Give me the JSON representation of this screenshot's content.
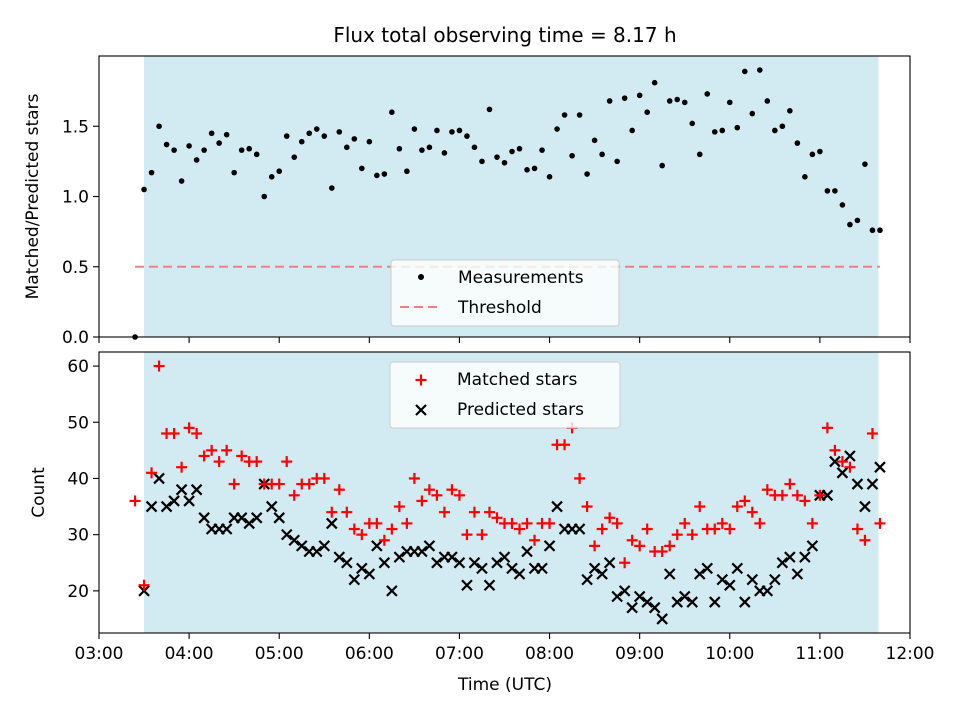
{
  "figure_title": "Flux total observing time = 8.17 h",
  "colors": {
    "shade": "#add8e6",
    "measurement": "#000000",
    "threshold": "#f08080",
    "matched": "#ff0000",
    "predicted": "#000000"
  },
  "chart_data": [
    {
      "type": "scatter",
      "title": "Flux total observing time = 8.17 h",
      "xlabel": "",
      "ylabel": "Matched/Predicted stars",
      "xlim": [
        "03:00",
        "12:00"
      ],
      "ylim": [
        0,
        2.0
      ],
      "yticks": [
        "0.0",
        "0.5",
        "1.0",
        "1.5"
      ],
      "ytick_values": [
        0,
        0.5,
        1.0,
        1.5
      ],
      "shaded_interval": [
        "03:30",
        "11:39"
      ],
      "threshold": 0.5,
      "threshold_range": [
        "03:24",
        "11:40"
      ],
      "legend": {
        "placement": "lower center",
        "entries": [
          "Measurements",
          "Threshold"
        ]
      },
      "series": [
        {
          "name": "Measurements",
          "x": [
            "03:24",
            "03:30",
            "03:35",
            "03:40",
            "03:45",
            "03:50",
            "03:55",
            "04:00",
            "04:05",
            "04:10",
            "04:15",
            "04:20",
            "04:25",
            "04:30",
            "04:35",
            "04:40",
            "04:45",
            "04:50",
            "04:55",
            "05:00",
            "05:05",
            "05:10",
            "05:15",
            "05:20",
            "05:25",
            "05:30",
            "05:35",
            "05:40",
            "05:45",
            "05:50",
            "05:55",
            "06:00",
            "06:05",
            "06:10",
            "06:15",
            "06:20",
            "06:25",
            "06:30",
            "06:35",
            "06:40",
            "06:45",
            "06:50",
            "06:55",
            "07:00",
            "07:05",
            "07:10",
            "07:15",
            "07:20",
            "07:25",
            "07:30",
            "07:35",
            "07:40",
            "07:45",
            "07:50",
            "07:55",
            "08:00",
            "08:05",
            "08:10",
            "08:15",
            "08:20",
            "08:25",
            "08:30",
            "08:35",
            "08:40",
            "08:45",
            "08:50",
            "08:55",
            "09:00",
            "09:05",
            "09:10",
            "09:15",
            "09:20",
            "09:25",
            "09:30",
            "09:35",
            "09:40",
            "09:45",
            "09:50",
            "09:55",
            "10:00",
            "10:05",
            "10:10",
            "10:15",
            "10:20",
            "10:25",
            "10:30",
            "10:35",
            "10:40",
            "10:45",
            "10:50",
            "10:55",
            "11:00",
            "11:05",
            "11:10",
            "11:15",
            "11:20",
            "11:25",
            "11:30",
            "11:35",
            "11:40"
          ],
          "y": [
            0.0,
            1.05,
            1.17,
            1.5,
            1.37,
            1.33,
            1.11,
            1.36,
            1.26,
            1.33,
            1.45,
            1.38,
            1.44,
            1.17,
            1.33,
            1.34,
            1.3,
            1.0,
            1.14,
            1.18,
            1.43,
            1.28,
            1.39,
            1.45,
            1.48,
            1.43,
            1.06,
            1.46,
            1.35,
            1.41,
            1.2,
            1.39,
            1.15,
            1.16,
            1.6,
            1.34,
            1.18,
            1.48,
            1.33,
            1.35,
            1.47,
            1.31,
            1.46,
            1.47,
            1.43,
            1.35,
            1.25,
            1.62,
            1.28,
            1.24,
            1.32,
            1.34,
            1.19,
            1.2,
            1.33,
            1.14,
            1.48,
            1.58,
            1.29,
            1.58,
            1.16,
            1.4,
            1.3,
            1.68,
            1.25,
            1.7,
            1.47,
            1.72,
            1.6,
            1.81,
            1.22,
            1.68,
            1.69,
            1.67,
            1.52,
            1.3,
            1.73,
            1.46,
            1.47,
            1.67,
            1.49,
            1.89,
            1.59,
            1.9,
            1.68,
            1.47,
            1.5,
            1.61,
            1.38,
            1.14,
            1.3,
            1.32,
            1.04,
            1.04,
            0.94,
            0.8,
            0.83,
            1.23,
            0.76,
            0.76
          ]
        }
      ]
    },
    {
      "type": "scatter",
      "title": "",
      "xlabel": "Time (UTC)",
      "ylabel": "Count",
      "xlim": [
        "03:00",
        "12:00"
      ],
      "xticks": [
        "03:00",
        "04:00",
        "05:00",
        "06:00",
        "07:00",
        "08:00",
        "09:00",
        "10:00",
        "11:00",
        "12:00"
      ],
      "ylim": [
        12.5,
        62.5
      ],
      "yticks": [
        "20",
        "30",
        "40",
        "50",
        "60"
      ],
      "ytick_values": [
        20,
        30,
        40,
        50,
        60
      ],
      "shaded_interval": [
        "03:30",
        "11:39"
      ],
      "legend": {
        "placement": "upper center",
        "entries": [
          "Matched stars",
          "Predicted stars"
        ]
      },
      "series": [
        {
          "name": "Matched stars",
          "marker": "+",
          "x": [
            "03:24",
            "03:30",
            "03:35",
            "03:40",
            "03:45",
            "03:50",
            "03:55",
            "04:00",
            "04:05",
            "04:10",
            "04:15",
            "04:20",
            "04:25",
            "04:30",
            "04:35",
            "04:40",
            "04:45",
            "04:50",
            "04:55",
            "05:00",
            "05:05",
            "05:10",
            "05:15",
            "05:20",
            "05:25",
            "05:30",
            "05:35",
            "05:40",
            "05:45",
            "05:50",
            "05:55",
            "06:00",
            "06:05",
            "06:10",
            "06:15",
            "06:20",
            "06:25",
            "06:30",
            "06:35",
            "06:40",
            "06:45",
            "06:50",
            "06:55",
            "07:00",
            "07:05",
            "07:10",
            "07:15",
            "07:20",
            "07:25",
            "07:30",
            "07:35",
            "07:40",
            "07:45",
            "07:50",
            "07:55",
            "08:00",
            "08:05",
            "08:10",
            "08:15",
            "08:20",
            "08:25",
            "08:30",
            "08:35",
            "08:40",
            "08:45",
            "08:50",
            "08:55",
            "09:00",
            "09:05",
            "09:10",
            "09:15",
            "09:20",
            "09:25",
            "09:30",
            "09:35",
            "09:40",
            "09:45",
            "09:50",
            "09:55",
            "10:00",
            "10:05",
            "10:10",
            "10:15",
            "10:20",
            "10:25",
            "10:30",
            "10:35",
            "10:40",
            "10:45",
            "10:50",
            "10:55",
            "11:00",
            "11:05",
            "11:10",
            "11:15",
            "11:20",
            "11:25",
            "11:30",
            "11:35",
            "11:40"
          ],
          "y": [
            36,
            21,
            41,
            60,
            48,
            48,
            42,
            49,
            48,
            44,
            45,
            43,
            45,
            39,
            44,
            43,
            43,
            39,
            39,
            39,
            43,
            37,
            39,
            39,
            40,
            40,
            34,
            38,
            34,
            31,
            30,
            32,
            32,
            29,
            31,
            35,
            32,
            40,
            36,
            38,
            37,
            34,
            38,
            37,
            30,
            34,
            30,
            34,
            33,
            32,
            32,
            31,
            32,
            29,
            32,
            32,
            46,
            46,
            49,
            40,
            35,
            28,
            31,
            33,
            32,
            25,
            29,
            28,
            31,
            27,
            27,
            28,
            30,
            32,
            30,
            35,
            31,
            31,
            32,
            31,
            35,
            36,
            34,
            32,
            38,
            37,
            37,
            39,
            37,
            36,
            32,
            37,
            49,
            45,
            43,
            42,
            31,
            29,
            48,
            32
          ]
        },
        {
          "name": "Predicted stars",
          "marker": "x",
          "x": [
            "03:30",
            "03:35",
            "03:40",
            "03:45",
            "03:50",
            "03:55",
            "04:00",
            "04:05",
            "04:10",
            "04:15",
            "04:20",
            "04:25",
            "04:30",
            "04:35",
            "04:40",
            "04:45",
            "04:50",
            "04:55",
            "05:00",
            "05:05",
            "05:10",
            "05:15",
            "05:20",
            "05:25",
            "05:30",
            "05:35",
            "05:40",
            "05:45",
            "05:50",
            "05:55",
            "06:00",
            "06:05",
            "06:10",
            "06:15",
            "06:20",
            "06:25",
            "06:30",
            "06:35",
            "06:40",
            "06:45",
            "06:50",
            "06:55",
            "07:00",
            "07:05",
            "07:10",
            "07:15",
            "07:20",
            "07:25",
            "07:30",
            "07:35",
            "07:40",
            "07:45",
            "07:50",
            "07:55",
            "08:00",
            "08:05",
            "08:10",
            "08:15",
            "08:20",
            "08:25",
            "08:30",
            "08:35",
            "08:40",
            "08:45",
            "08:50",
            "08:55",
            "09:00",
            "09:05",
            "09:10",
            "09:15",
            "09:20",
            "09:25",
            "09:30",
            "09:35",
            "09:40",
            "09:45",
            "09:50",
            "09:55",
            "10:00",
            "10:05",
            "10:10",
            "10:15",
            "10:20",
            "10:25",
            "10:30",
            "10:35",
            "10:40",
            "10:45",
            "10:50",
            "10:55",
            "11:00",
            "11:05",
            "11:10",
            "11:15",
            "11:20",
            "11:25",
            "11:30",
            "11:35",
            "11:40"
          ],
          "y": [
            20,
            35,
            40,
            35,
            36,
            38,
            36,
            38,
            33,
            31,
            31,
            31,
            33,
            33,
            32,
            33,
            39,
            35,
            33,
            30,
            29,
            28,
            27,
            27,
            28,
            32,
            26,
            25,
            22,
            24,
            23,
            28,
            25,
            20,
            26,
            27,
            27,
            27,
            28,
            25,
            26,
            26,
            25,
            21,
            25,
            24,
            21,
            25,
            26,
            24,
            23,
            27,
            24,
            24,
            28,
            35,
            31,
            31,
            31,
            22,
            24,
            23,
            25,
            19,
            20,
            17,
            19,
            18,
            17,
            15,
            23,
            18,
            19,
            18,
            23,
            24,
            18,
            22,
            21,
            24,
            18,
            22,
            20,
            20,
            22,
            25,
            26,
            23,
            26,
            28,
            37,
            37,
            43,
            41,
            44,
            39,
            35,
            39,
            42
          ]
        }
      ]
    }
  ]
}
